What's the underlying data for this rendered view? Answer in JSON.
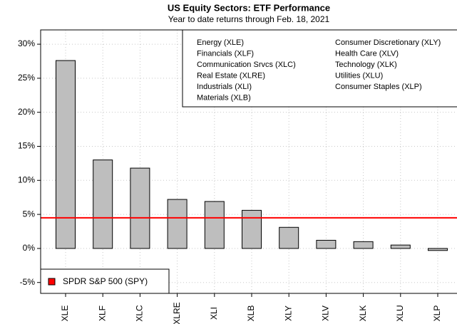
{
  "chart_data": {
    "type": "bar",
    "title": "US Equity Sectors: ETF Performance",
    "subtitle": "Year to date returns through Feb. 18, 2021",
    "categories": [
      "XLE",
      "XLF",
      "XLC",
      "XLRE",
      "XLI",
      "XLB",
      "XLY",
      "XLV",
      "XLK",
      "XLU",
      "XLP"
    ],
    "values": [
      27.6,
      13.0,
      11.8,
      7.2,
      6.9,
      5.6,
      3.1,
      1.2,
      1.0,
      0.5,
      -0.3
    ],
    "color": "#bebebe",
    "ylim": [
      -6.6,
      32.1
    ],
    "yticks": [
      {
        "value": -5,
        "label": "-5%"
      },
      {
        "value": 0,
        "label": "0%"
      },
      {
        "value": 5,
        "label": "5%"
      },
      {
        "value": 10,
        "label": "10%"
      },
      {
        "value": 15,
        "label": "15%"
      },
      {
        "value": 20,
        "label": "20%"
      },
      {
        "value": 25,
        "label": "25%"
      },
      {
        "value": 30,
        "label": "30%"
      }
    ],
    "grid": true,
    "reference_line": {
      "name": "SPDR S&P 500 (SPY)",
      "color": "#ff0000",
      "value": 4.5
    },
    "sector_legend": [
      "Energy (XLE)",
      "Financials (XLF)",
      "Communication Srvcs (XLC)",
      "Real Estate (XLRE)",
      "Industrials (XLI)",
      "Materials (XLB)",
      "Consumer Discretionary (XLY)",
      "Health Care (XLV)",
      "Technology (XLK)",
      "Utilities (XLU)",
      "Consumer Staples (XLP)"
    ]
  }
}
